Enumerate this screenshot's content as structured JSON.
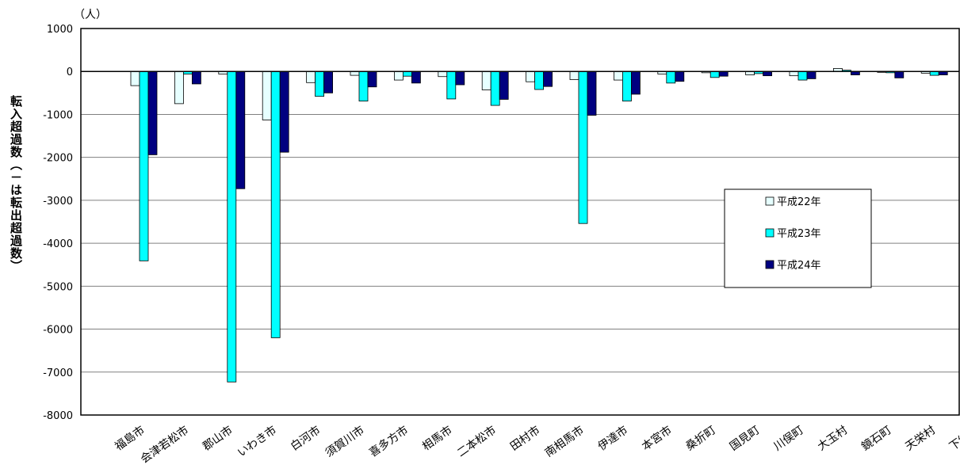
{
  "chart_data": {
    "type": "bar",
    "unit_label": "（人）",
    "ylabel": "転入超過数（－は転出超過数）",
    "ylim": [
      -8000,
      1000
    ],
    "yticks": [
      1000,
      0,
      -1000,
      -2000,
      -3000,
      -4000,
      -5000,
      -6000,
      -7000,
      -8000
    ],
    "grid": true,
    "legend_position": "right",
    "categories": [
      "福島市",
      "会津若松市",
      "郡山市",
      "いわき市",
      "白河市",
      "須賀川市",
      "喜多方市",
      "相馬市",
      "二本松市",
      "田村市",
      "南相馬市",
      "伊達市",
      "本宮市",
      "桑折町",
      "国見町",
      "川俣町",
      "大玉村",
      "鏡石町",
      "天栄村",
      "下郷町"
    ],
    "series": [
      {
        "name": "平成22年",
        "color": "#e6ffff",
        "values": [
          -330,
          -750,
          -60,
          -1130,
          -260,
          -90,
          -200,
          -120,
          -430,
          -240,
          -190,
          -200,
          -60,
          -30,
          -80,
          -100,
          70,
          -20,
          -40,
          -120
        ]
      },
      {
        "name": "平成23年",
        "color": "#00ffff",
        "values": [
          -4410,
          -60,
          -7230,
          -6200,
          -580,
          -690,
          -110,
          -640,
          -790,
          -420,
          -3540,
          -690,
          -270,
          -140,
          -50,
          -200,
          30,
          -30,
          -90,
          -40
        ]
      },
      {
        "name": "平成24年",
        "color": "#000080",
        "values": [
          -1940,
          -290,
          -2730,
          -1880,
          -500,
          -360,
          -270,
          -310,
          -650,
          -350,
          -1020,
          -530,
          -230,
          -110,
          -100,
          -170,
          -80,
          -150,
          -80,
          -40
        ]
      }
    ]
  }
}
